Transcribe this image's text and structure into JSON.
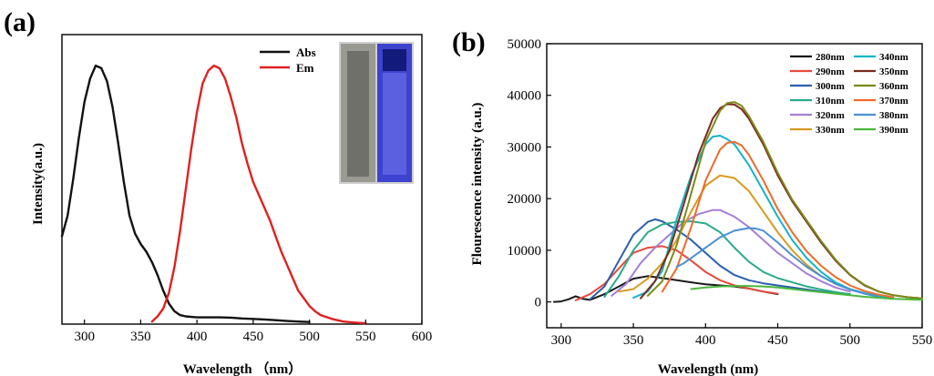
{
  "panels": {
    "a": {
      "label": "(a)"
    },
    "b": {
      "label": "(b)"
    }
  },
  "chart_data": [
    {
      "type": "line",
      "title": "",
      "xlabel": "Wavelength （nm）",
      "ylabel": "Intensity(a.u.)",
      "xlim": [
        280,
        600
      ],
      "ylim": [
        0,
        1.12
      ],
      "xticks": [
        300,
        350,
        400,
        450,
        500,
        550,
        600
      ],
      "legend_position": "top-right",
      "inset": {
        "description": "photo of cuvettes",
        "colors": [
          "#8a8a84",
          "#4a4fd6"
        ]
      },
      "series": [
        {
          "name": "Abs",
          "color": "#111111",
          "x": [
            280,
            285,
            290,
            295,
            300,
            305,
            310,
            315,
            320,
            325,
            330,
            335,
            340,
            345,
            350,
            355,
            360,
            365,
            370,
            375,
            380,
            385,
            390,
            395,
            400,
            410,
            420,
            430,
            440,
            450,
            460,
            470,
            480,
            490,
            500
          ],
          "y": [
            0.34,
            0.42,
            0.56,
            0.72,
            0.86,
            0.95,
            1.0,
            0.99,
            0.94,
            0.84,
            0.7,
            0.55,
            0.42,
            0.35,
            0.31,
            0.28,
            0.24,
            0.19,
            0.13,
            0.08,
            0.05,
            0.035,
            0.03,
            0.028,
            0.026,
            0.026,
            0.026,
            0.025,
            0.022,
            0.02,
            0.018,
            0.015,
            0.012,
            0.01,
            0.008
          ]
        },
        {
          "name": "Em",
          "color": "#e02020",
          "x": [
            360,
            365,
            370,
            375,
            380,
            385,
            390,
            395,
            400,
            405,
            410,
            415,
            420,
            425,
            430,
            435,
            440,
            445,
            450,
            455,
            460,
            465,
            470,
            475,
            480,
            485,
            490,
            495,
            500,
            505,
            510,
            520,
            530,
            540,
            550
          ],
          "y": [
            0.01,
            0.03,
            0.06,
            0.12,
            0.22,
            0.36,
            0.52,
            0.68,
            0.82,
            0.93,
            0.98,
            1.0,
            0.99,
            0.95,
            0.88,
            0.8,
            0.7,
            0.62,
            0.55,
            0.5,
            0.45,
            0.4,
            0.34,
            0.28,
            0.23,
            0.18,
            0.13,
            0.1,
            0.07,
            0.05,
            0.035,
            0.02,
            0.01,
            0.006,
            0.003
          ]
        }
      ]
    },
    {
      "type": "line",
      "title": "",
      "xlabel": "Wavelength (nm)",
      "ylabel": "Flourescence intensity (a.u.)",
      "xlim": [
        290,
        550
      ],
      "ylim": [
        -5000,
        50000
      ],
      "xticks": [
        300,
        350,
        400,
        450,
        500,
        550
      ],
      "yticks": [
        0,
        10000,
        20000,
        30000,
        40000,
        50000
      ],
      "legend_position": "top-right",
      "series": [
        {
          "name": "280nm",
          "color": "#1a1a1a",
          "x": [
            295,
            300,
            305,
            310,
            315,
            320,
            330,
            340,
            350,
            360,
            370,
            380,
            390,
            400,
            410,
            420,
            430,
            440,
            450
          ],
          "y": [
            0,
            100,
            500,
            1100,
            600,
            400,
            1500,
            3000,
            4500,
            5000,
            4600,
            4200,
            3800,
            3400,
            3200,
            3000,
            2600,
            2000,
            1500
          ]
        },
        {
          "name": "290nm",
          "color": "#e84a3c",
          "x": [
            310,
            320,
            330,
            340,
            350,
            360,
            370,
            380,
            390,
            400,
            410,
            420,
            430,
            440,
            450
          ],
          "y": [
            300,
            1500,
            3500,
            6500,
            9500,
            10500,
            10800,
            10000,
            8000,
            5800,
            4200,
            3200,
            2600,
            2000,
            1600
          ]
        },
        {
          "name": "300nm",
          "color": "#2b5fae",
          "x": [
            320,
            330,
            340,
            350,
            360,
            365,
            370,
            380,
            390,
            400,
            410,
            420,
            430,
            440,
            450,
            460,
            470,
            480,
            490,
            500
          ],
          "y": [
            500,
            3000,
            8000,
            13000,
            15500,
            16000,
            15600,
            14000,
            12000,
            9500,
            7000,
            5200,
            4200,
            3600,
            3200,
            2800,
            2400,
            2000,
            1700,
            1500
          ]
        },
        {
          "name": "310nm",
          "color": "#2aab8a",
          "x": [
            330,
            340,
            350,
            360,
            370,
            380,
            390,
            400,
            410,
            420,
            430,
            440,
            450,
            460,
            470,
            480,
            490,
            500
          ],
          "y": [
            1000,
            5000,
            10000,
            13500,
            15000,
            15500,
            15600,
            15200,
            13500,
            10500,
            7800,
            5800,
            4600,
            3800,
            3000,
            2400,
            1900,
            1500
          ]
        },
        {
          "name": "320nm",
          "color": "#a57ed6",
          "x": [
            335,
            345,
            355,
            365,
            375,
            385,
            395,
            405,
            410,
            420,
            430,
            440,
            450,
            460,
            470,
            480,
            490,
            500
          ],
          "y": [
            1200,
            3500,
            7500,
            10500,
            13000,
            15500,
            17000,
            17800,
            17800,
            16500,
            14500,
            12000,
            9500,
            7500,
            5500,
            4000,
            2800,
            2000
          ]
        },
        {
          "name": "330nm",
          "color": "#d69a1e",
          "x": [
            340,
            350,
            360,
            370,
            380,
            390,
            400,
            410,
            420,
            430,
            440,
            450,
            460,
            470,
            480,
            490,
            500,
            510,
            520
          ],
          "y": [
            2000,
            2500,
            4500,
            7500,
            12000,
            17500,
            22500,
            24500,
            24000,
            21500,
            17500,
            13500,
            10000,
            7200,
            5000,
            3500,
            2400,
            1700,
            1200
          ]
        },
        {
          "name": "340nm",
          "color": "#12b5c9",
          "x": [
            350,
            360,
            370,
            375,
            380,
            390,
            400,
            405,
            410,
            415,
            420,
            430,
            440,
            450,
            460,
            470,
            480,
            490,
            500,
            510,
            520,
            530
          ],
          "y": [
            800,
            2000,
            6000,
            11000,
            16000,
            24500,
            30500,
            32000,
            32200,
            31500,
            30500,
            26500,
            21500,
            16500,
            12000,
            8500,
            5800,
            3800,
            2500,
            1700,
            1100,
            800
          ]
        },
        {
          "name": "350nm",
          "color": "#7a2a1e",
          "x": [
            355,
            365,
            375,
            385,
            395,
            405,
            410,
            415,
            420,
            425,
            430,
            440,
            450,
            460,
            470,
            480,
            490,
            500,
            510,
            520,
            530,
            540,
            550
          ],
          "y": [
            700,
            4000,
            10000,
            19000,
            28500,
            35500,
            37500,
            38300,
            38200,
            37300,
            35500,
            30500,
            24500,
            19500,
            15500,
            11500,
            8000,
            5200,
            3200,
            2000,
            1300,
            900,
            700
          ]
        },
        {
          "name": "360nm",
          "color": "#7d8a1a",
          "x": [
            360,
            370,
            380,
            390,
            400,
            410,
            415,
            420,
            425,
            430,
            440,
            450,
            460,
            470,
            480,
            490,
            500,
            510,
            520,
            530,
            540,
            550
          ],
          "y": [
            1200,
            4000,
            11000,
            21000,
            31000,
            37000,
            38500,
            38700,
            38000,
            36000,
            31000,
            25000,
            19800,
            15800,
            11800,
            8200,
            5300,
            3300,
            2000,
            1300,
            900,
            700
          ]
        },
        {
          "name": "370nm",
          "color": "#f06a28",
          "x": [
            370,
            380,
            390,
            400,
            410,
            415,
            420,
            425,
            430,
            440,
            450,
            460,
            470,
            480,
            490,
            500,
            510,
            520,
            530
          ],
          "y": [
            2000,
            6500,
            14500,
            23500,
            29500,
            30800,
            31000,
            30300,
            28500,
            23500,
            18000,
            13500,
            9800,
            7000,
            4800,
            3200,
            2100,
            1400,
            900
          ]
        },
        {
          "name": "380nm",
          "color": "#4a90d6",
          "x": [
            380,
            385,
            390,
            400,
            410,
            420,
            430,
            435,
            440,
            450,
            460,
            470,
            480,
            490,
            500,
            510,
            520
          ],
          "y": [
            6800,
            7500,
            8500,
            10500,
            12500,
            13800,
            14300,
            14200,
            13800,
            11500,
            9000,
            6800,
            5000,
            3500,
            2400,
            1600,
            1000
          ]
        },
        {
          "name": "390nm",
          "color": "#48b83a",
          "x": [
            390,
            400,
            410,
            420,
            430,
            440,
            450,
            460,
            470,
            480,
            490,
            500,
            510,
            520,
            530,
            540,
            550
          ],
          "y": [
            2500,
            2800,
            3000,
            3100,
            3100,
            3000,
            2800,
            2500,
            2200,
            1900,
            1600,
            1300,
            1000,
            800,
            600,
            500,
            400
          ]
        }
      ]
    }
  ]
}
